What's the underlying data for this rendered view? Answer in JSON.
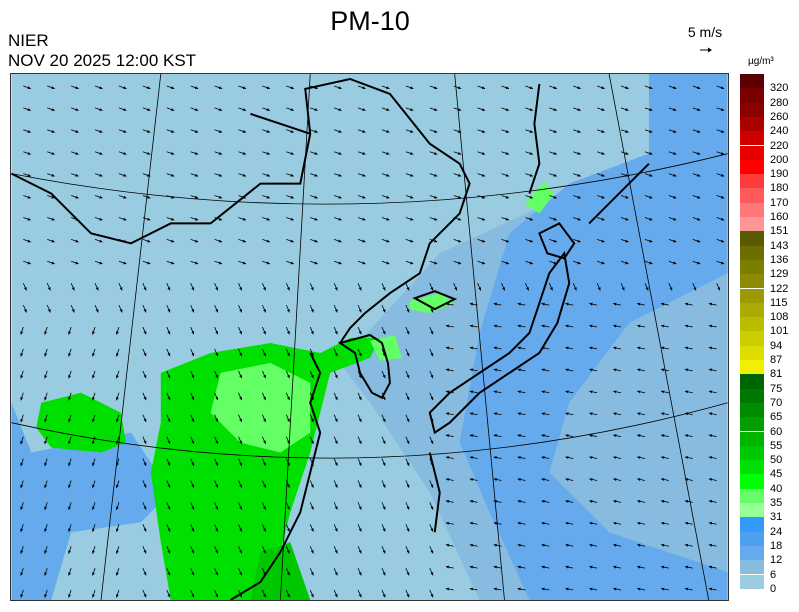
{
  "header": {
    "title": "PM-10",
    "organization": "NIER",
    "datetime": "NOV 20 2025 12:00 KST"
  },
  "wind_reference": {
    "label": "5 m/s",
    "icon": "arrow-right-icon"
  },
  "legend": {
    "unit": "µg/m³",
    "labels": [
      "320",
      "280",
      "260",
      "240",
      "220",
      "200",
      "190",
      "180",
      "170",
      "160",
      "151",
      "143",
      "136",
      "129",
      "122",
      "115",
      "108",
      "101",
      "94",
      "87",
      "81",
      "75",
      "70",
      "65",
      "60",
      "55",
      "50",
      "45",
      "40",
      "35",
      "31",
      "24",
      "18",
      "12",
      "6",
      "0"
    ],
    "colors": [
      "#5a0000",
      "#7a0000",
      "#8c0000",
      "#aa0000",
      "#cc0000",
      "#e60000",
      "#ff0000",
      "#ff3c3c",
      "#ff5a5a",
      "#ff7878",
      "#ff9696",
      "#5a5a00",
      "#6e6e00",
      "#7d7d00",
      "#8c8c00",
      "#9b9b00",
      "#aaaa00",
      "#bbbb00",
      "#cccc00",
      "#dddd00",
      "#f0f000",
      "#006400",
      "#007800",
      "#008c00",
      "#00a000",
      "#00b400",
      "#00c800",
      "#00e000",
      "#00ff00",
      "#64ff64",
      "#96ff96",
      "#3399ff",
      "#4da0f0",
      "#66aaee",
      "#88bbe0",
      "#99cce0"
    ]
  },
  "map": {
    "background_color": "#99cce0",
    "region": "East Asia",
    "field": "PM-10 concentration with wind vectors"
  }
}
